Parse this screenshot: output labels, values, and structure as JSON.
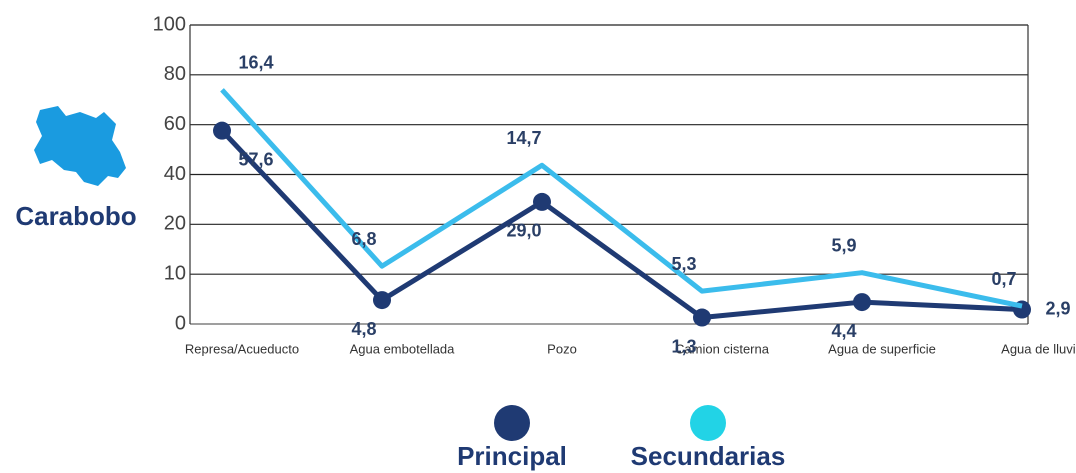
{
  "chart_data": {
    "type": "line",
    "region": "Carabobo",
    "categories": [
      "Represa/Acueducto",
      "Agua embotellada",
      "Pozo",
      "Camion cisterna",
      "Agua de superficie",
      "Agua de lluvia"
    ],
    "series": [
      {
        "name": "Principal",
        "color": "#1f3a73",
        "values": [
          57.6,
          4.8,
          29.0,
          1.3,
          4.4,
          2.9
        ],
        "value_labels": [
          "57,6",
          "4,8",
          "29,0",
          "1,3",
          "4,4",
          "2,9"
        ]
      },
      {
        "name": "Secundarias",
        "color": "#3bbcec",
        "legend_color": "#22d3e6",
        "stacked": true,
        "values": [
          16.4,
          6.8,
          14.7,
          5.3,
          5.9,
          0.7
        ],
        "value_labels": [
          "16,4",
          "6,8",
          "14,7",
          "5,3",
          "5,9",
          "0,7"
        ]
      }
    ],
    "ylim": [
      0,
      100
    ],
    "yticks": [
      0,
      10,
      20,
      40,
      60,
      80,
      100
    ],
    "grid": true
  }
}
